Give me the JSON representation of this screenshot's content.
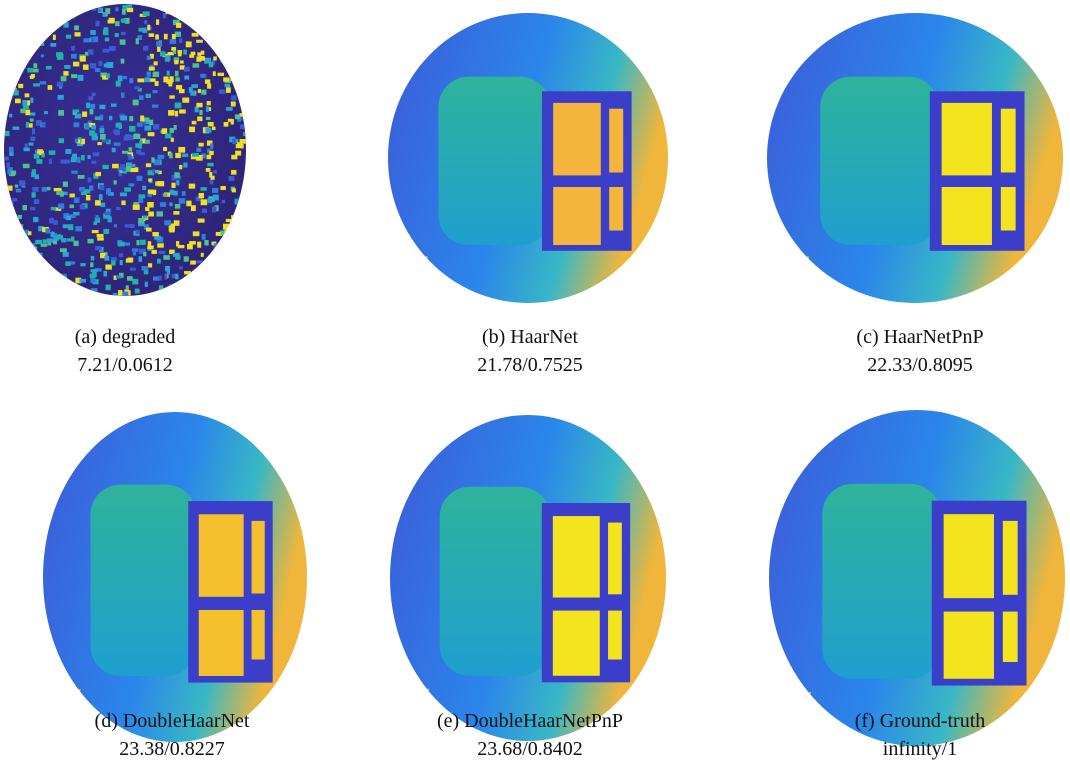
{
  "panels": [
    {
      "label": "(a) degraded",
      "metrics": "7.21/0.0612"
    },
    {
      "label": "(b) HaarNet",
      "metrics": "21.78/0.7525"
    },
    {
      "label": "(c) HaarNetPnP",
      "metrics": "22.33/0.8095"
    },
    {
      "label": "(d) DoubleHaarNet",
      "metrics": "23.38/0.8227"
    },
    {
      "label": "(e) DoubleHaarNetPnP",
      "metrics": "23.68/0.8402"
    },
    {
      "label": "(f) Ground-truth",
      "metrics": "infinity/1"
    }
  ]
}
